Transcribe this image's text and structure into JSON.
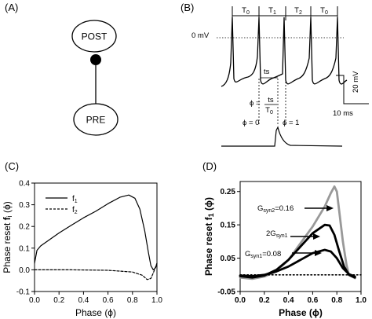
{
  "panels": {
    "a": {
      "label": "(A)",
      "post_node": "POST",
      "pre_node": "PRE"
    },
    "b": {
      "label": "(B)",
      "period_labels": [
        "T",
        "T",
        "T",
        "T"
      ],
      "period_subscripts": [
        "0",
        "1",
        "2",
        "0"
      ],
      "zero_mv_label": "0 mV",
      "ts_label": "ts",
      "phi_equation": {
        "lhs": "ϕ =",
        "numerator": "ts",
        "denominator": "T",
        "denominator_sub": "0"
      },
      "phi_zero_label": "ϕ = 0",
      "phi_one_label": "ϕ = 1",
      "scale_voltage": "20 mV",
      "scale_time": "10 ms"
    },
    "c": {
      "label": "(C)",
      "ylabel": "Phase reset",
      "ylabel_func": "f",
      "ylabel_sub": "i",
      "ylabel_arg": "(ϕ)",
      "xlabel": "Phase (ϕ)",
      "legend": [
        {
          "name": "f",
          "sub": "1",
          "style": "solid"
        },
        {
          "name": "f",
          "sub": "2",
          "style": "dashed"
        }
      ]
    },
    "d": {
      "label": "(D)",
      "ylabel": "Phase reset",
      "ylabel_func": "f",
      "ylabel_sub": "1",
      "ylabel_arg": "(ϕ)",
      "xlabel": "Phase (ϕ)",
      "annotations": [
        {
          "pre": "G",
          "sub": "syn2",
          "post": "=0.16"
        },
        {
          "pre": "2G",
          "sub": "syn1",
          "post": ""
        },
        {
          "pre": "G",
          "sub": "syn1",
          "post": "=0.08"
        }
      ]
    }
  },
  "chart_data": [
    {
      "panel": "C",
      "type": "line",
      "xlabel": "Phase (ϕ)",
      "ylabel": "Phase reset fi (ϕ)",
      "xlim": [
        0.0,
        1.0
      ],
      "ylim": [
        -0.1,
        0.4
      ],
      "xticks": [
        "0.0",
        "0.2",
        "0.4",
        "0.6",
        "0.8",
        "1.0"
      ],
      "yticks": [
        "-0.1",
        "0.0",
        "0.1",
        "0.2",
        "0.3",
        "0.4"
      ],
      "legend_position": "top-left",
      "series": [
        {
          "name": "f1",
          "style": "solid",
          "x": [
            0.0,
            0.02,
            0.05,
            0.1,
            0.2,
            0.3,
            0.4,
            0.5,
            0.6,
            0.7,
            0.77,
            0.82,
            0.86,
            0.9,
            0.93,
            0.95,
            0.97,
            0.99,
            1.0
          ],
          "y": [
            0.03,
            0.09,
            0.11,
            0.13,
            0.17,
            0.205,
            0.24,
            0.27,
            0.305,
            0.335,
            0.345,
            0.33,
            0.28,
            0.18,
            0.08,
            0.02,
            0.0,
            0.01,
            0.03
          ]
        },
        {
          "name": "f2",
          "style": "dashed",
          "x": [
            0.0,
            0.3,
            0.6,
            0.8,
            0.88,
            0.92,
            0.95,
            0.97,
            1.0
          ],
          "y": [
            0.0,
            0.0,
            -0.002,
            -0.01,
            -0.025,
            -0.045,
            -0.04,
            -0.015,
            0.03
          ]
        }
      ]
    },
    {
      "panel": "D",
      "type": "line",
      "xlabel": "Phase (ϕ)",
      "ylabel": "Phase reset f1 (ϕ)",
      "xlim": [
        0.0,
        1.0
      ],
      "ylim": [
        -0.05,
        0.28
      ],
      "xticks": [
        "0.0",
        "0.2",
        "0.4",
        "0.6",
        "0.8",
        "1.0"
      ],
      "yticks": [
        "-0.05",
        "0.05",
        "0.15",
        "0.25"
      ],
      "series": [
        {
          "name": "Gsyn2=0.16",
          "color": "#999999",
          "x": [
            0.0,
            0.1,
            0.2,
            0.3,
            0.4,
            0.5,
            0.6,
            0.7,
            0.75,
            0.78,
            0.8,
            0.82,
            0.85,
            0.88,
            0.9,
            0.95
          ],
          "y": [
            -0.008,
            -0.012,
            -0.005,
            0.01,
            0.045,
            0.095,
            0.145,
            0.205,
            0.245,
            0.265,
            0.25,
            0.19,
            0.1,
            0.03,
            0.0,
            -0.01
          ]
        },
        {
          "name": "2Gsyn1",
          "color": "#000000",
          "x": [
            0.0,
            0.1,
            0.2,
            0.3,
            0.4,
            0.5,
            0.6,
            0.7,
            0.74,
            0.78,
            0.82,
            0.86,
            0.9,
            0.95
          ],
          "y": [
            -0.004,
            -0.008,
            -0.002,
            0.015,
            0.045,
            0.085,
            0.125,
            0.15,
            0.148,
            0.12,
            0.07,
            0.025,
            0.0,
            -0.008
          ]
        },
        {
          "name": "Gsyn1=0.08",
          "color": "#000000",
          "x": [
            0.0,
            0.1,
            0.2,
            0.3,
            0.4,
            0.5,
            0.6,
            0.7,
            0.75,
            0.8,
            0.85,
            0.9,
            0.95
          ],
          "y": [
            -0.002,
            -0.004,
            0.0,
            0.01,
            0.025,
            0.045,
            0.065,
            0.075,
            0.07,
            0.05,
            0.02,
            0.002,
            -0.005
          ]
        },
        {
          "name": "baseline",
          "style": "dotted",
          "x": [
            0.0,
            1.0
          ],
          "y": [
            0.0,
            0.0
          ]
        }
      ]
    }
  ]
}
